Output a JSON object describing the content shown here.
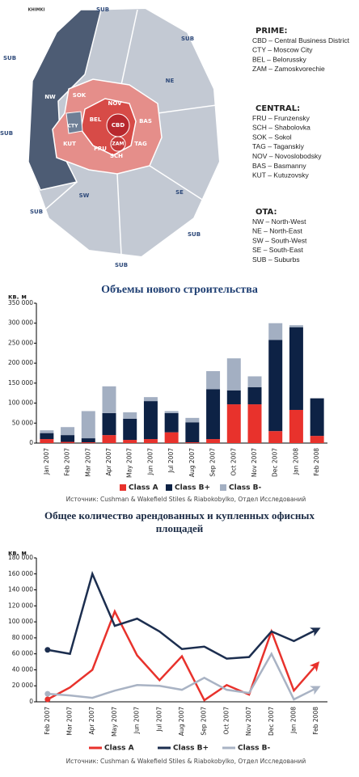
{
  "map": {
    "labels": [
      "KHIMKI",
      "SUB",
      "SUB",
      "SUB",
      "SUB",
      "SUB",
      "SUB",
      "SUB",
      "NW",
      "NE",
      "SW",
      "SE",
      "SOK",
      "NOV",
      "BEL",
      "CBD",
      "BAS",
      "ZAM",
      "TAG",
      "FRU",
      "SCH",
      "KUT",
      "CTY"
    ],
    "legend": [
      {
        "title": "PRIME:",
        "items": [
          "CBD – Central Business District",
          "CTY – Moscow City",
          "BEL – Belorussky",
          "ZAM – Zamoskvorechie"
        ]
      },
      {
        "title": "CENTRAL:",
        "items": [
          "FRU – Frunzensky",
          "SCH – Shabolovka",
          "SOK – Sokol",
          "TAG – Taganskiy",
          "NOV – Novoslobodsky",
          "BAS – Basmanny",
          "KUT – Kutuzovsky"
        ]
      },
      {
        "title": "OTA:",
        "items": [
          "NW – North-West",
          "NE – North-East",
          "SW – South-West",
          "SE – South-East",
          "SUB – Suburbs"
        ]
      }
    ]
  },
  "chart_data": [
    {
      "type": "bar",
      "stacked": true,
      "title": "Объемы нового строительства",
      "y_label": "кв. м",
      "categories": [
        "Jan 2007",
        "Feb 2007",
        "Mar 2007",
        "Apr 2007",
        "May 2007",
        "Jun 2007",
        "Jul 2007",
        "Aug 2007",
        "Sep 2007",
        "Oct 2007",
        "Nov 2007",
        "Dec 2007",
        "Jan 2008",
        "Feb 2008"
      ],
      "series": [
        {
          "name": "Class A",
          "color": "#e8322c",
          "values": [
            10000,
            3000,
            2000,
            20000,
            8000,
            10000,
            27000,
            2000,
            10000,
            97000,
            97000,
            30000,
            83000,
            18000
          ]
        },
        {
          "name": "Class B+",
          "color": "#0d2245",
          "values": [
            15000,
            17000,
            10000,
            55000,
            53000,
            95000,
            48000,
            50000,
            125000,
            35000,
            43000,
            228000,
            207000,
            94000
          ]
        },
        {
          "name": "Class B-",
          "color": "#a3afc2",
          "values": [
            7000,
            20000,
            68000,
            67000,
            16000,
            10000,
            5000,
            11000,
            45000,
            80000,
            27000,
            42000,
            5000,
            0
          ]
        }
      ],
      "ylim": [
        0,
        350000
      ],
      "yticks": [
        0,
        {
          "value": 50000,
          "label": "50 000"
        },
        {
          "value": 100000,
          "label": "100 000"
        },
        {
          "value": 150000,
          "label": "150 000"
        },
        {
          "value": 200000,
          "label": "200 000"
        },
        {
          "value": 250000,
          "label": "250 000"
        },
        {
          "value": 300000,
          "label": "300 000"
        },
        {
          "value": 350000,
          "label": "350 000"
        }
      ],
      "grid": false,
      "legend": "bottom",
      "source": "Источник: Cushman & Wakefield Stiles & Riabokobylko, Отдел Исследований"
    },
    {
      "type": "line",
      "title": "Общее количество арендованных и купленных офисных площадей",
      "y_label": "кв. м",
      "categories": [
        "Feb 2007",
        "Mar 2007",
        "Apr 2007",
        "May 2007",
        "Jun 2007",
        "Jul 2007",
        "Aug 2007",
        "Sep 2007",
        "Oct 2007",
        "Nov 2007",
        "Dec 2007",
        "Jan 2008",
        "Feb 2008"
      ],
      "series": [
        {
          "name": "Class A",
          "color": "#e8322c",
          "values": [
            3000,
            18000,
            40000,
            113000,
            58000,
            27000,
            57000,
            2000,
            21000,
            9000,
            88000,
            14000,
            46000
          ]
        },
        {
          "name": "Class B+",
          "color": "#1c2e4f",
          "values": [
            65000,
            60000,
            160000,
            95000,
            104000,
            88000,
            66000,
            69000,
            54000,
            56000,
            88000,
            76000,
            90000
          ]
        },
        {
          "name": "Class B-",
          "color": "#a9b3c4",
          "values": [
            10000,
            8000,
            5000,
            14000,
            21000,
            20000,
            15000,
            30000,
            15000,
            11000,
            60000,
            3000,
            17000
          ]
        }
      ],
      "ylim": [
        0,
        180000
      ],
      "yticks": [
        0,
        {
          "value": 20000,
          "label": "20 000"
        },
        {
          "value": 40000,
          "label": "40 000"
        },
        {
          "value": 60000,
          "label": "60 000"
        },
        {
          "value": 80000,
          "label": "80 000"
        },
        {
          "value": 100000,
          "label": "100 000"
        },
        {
          "value": 120000,
          "label": "120 000"
        },
        {
          "value": 140000,
          "label": "140 000"
        },
        {
          "value": 160000,
          "label": "160 000"
        },
        {
          "value": 180000,
          "label": "180 000"
        }
      ],
      "grid": false,
      "legend": "bottom",
      "source": "Источник: Cushman & Wakefield Stiles & Riabokobylko, Отдел Исследований"
    }
  ]
}
